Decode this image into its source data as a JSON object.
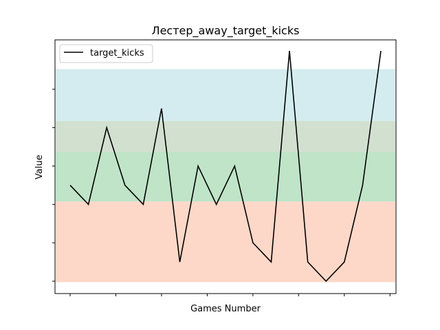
{
  "chart_data": {
    "type": "line",
    "title": "Лестер_away_target_kicks",
    "xlabel": "Games Number",
    "ylabel": "Value",
    "x": [
      0,
      1,
      2,
      3,
      4,
      5,
      6,
      7,
      8,
      9,
      10,
      11,
      12,
      13,
      14,
      15,
      16,
      17
    ],
    "series": [
      {
        "name": "target_kicks",
        "color": "#000000",
        "values": [
          5,
          4,
          8,
          5,
          4,
          9,
          1,
          6,
          4,
          6,
          2,
          1,
          12,
          1,
          0,
          1,
          5,
          12
        ]
      }
    ],
    "ylim": [
      -0.5,
      12
    ],
    "bands": [
      {
        "from": -0.05,
        "to": 4.15,
        "color": "#fdd8c8"
      },
      {
        "from": 4.15,
        "to": 6.75,
        "color": "#c0e4c8"
      },
      {
        "from": 6.75,
        "to": 8.35,
        "color": "#d2e0d0"
      },
      {
        "from": 8.35,
        "to": 11.05,
        "color": "#d4ecf0"
      }
    ],
    "xticks_labeled": false,
    "yticks_labeled": false,
    "legend_position": "top-left",
    "grid": false
  }
}
